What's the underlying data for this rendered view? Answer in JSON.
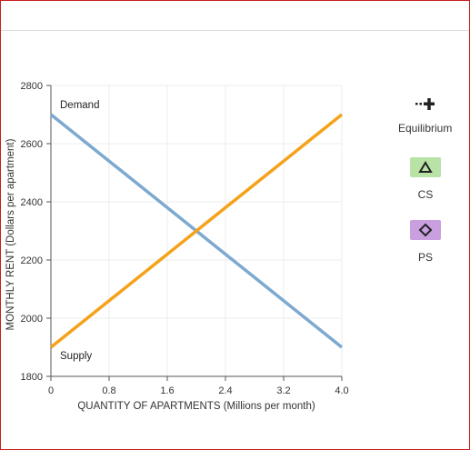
{
  "chart_data": {
    "type": "line",
    "xlabel": "QUANTITY OF APARTMENTS (Millions per month)",
    "ylabel": "MONTHLY RENT (Dollars per apartment)",
    "xlim": [
      0,
      4.0
    ],
    "ylim": [
      1800,
      2800
    ],
    "x_ticks": [
      "0",
      "0.8",
      "1.6",
      "2.4",
      "3.2",
      "4.0"
    ],
    "y_ticks": [
      "1800",
      "2000",
      "2200",
      "2400",
      "2600",
      "2800"
    ],
    "grid": true,
    "series": [
      {
        "name": "Demand",
        "color": "#7ea9cf",
        "x": [
          0,
          4.0
        ],
        "y": [
          2700,
          1900
        ]
      },
      {
        "name": "Supply",
        "color": "#f5a21b",
        "x": [
          0,
          4.0
        ],
        "y": [
          1900,
          2700
        ]
      }
    ]
  },
  "tools": [
    {
      "label": "Equilibrium",
      "icon": "equilibrium-plus-icon"
    },
    {
      "label": "CS",
      "icon": "triangle-icon",
      "color": "#b8e2a6"
    },
    {
      "label": "PS",
      "icon": "diamond-icon",
      "color": "#c99fe0"
    }
  ]
}
